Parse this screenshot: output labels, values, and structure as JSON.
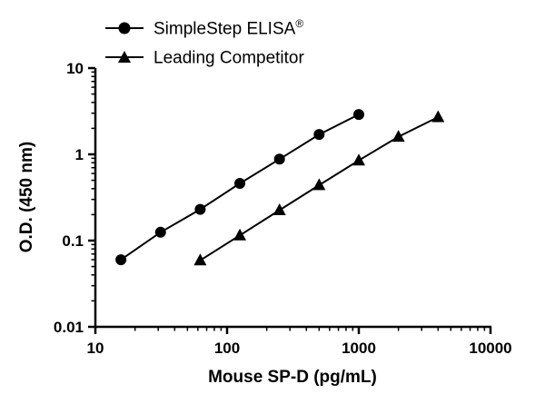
{
  "chart_data": {
    "type": "line",
    "title": "",
    "xlabel": "Mouse SP-D (pg/mL)",
    "ylabel": "O.D. (450 nm)",
    "x_scale": "log",
    "y_scale": "log",
    "xlim": [
      10,
      10000
    ],
    "ylim": [
      0.01,
      10
    ],
    "x_ticks": [
      10,
      100,
      1000,
      10000
    ],
    "x_tick_labels": [
      "10",
      "100",
      "1000",
      "10000"
    ],
    "y_ticks": [
      0.01,
      0.1,
      1,
      10
    ],
    "y_tick_labels": [
      "0.01",
      "0.1",
      "1",
      "10"
    ],
    "grid": false,
    "legend_position": "top-left",
    "line_color": "#000000",
    "background_color": "#ffffff",
    "series": [
      {
        "name": "SimpleStep ELISA",
        "name_suffix": "®",
        "marker": "circle",
        "x": [
          15.63,
          31.25,
          62.5,
          125,
          250,
          500,
          1000
        ],
        "y": [
          0.06,
          0.125,
          0.23,
          0.46,
          0.88,
          1.7,
          2.9
        ]
      },
      {
        "name": "Leading Competitor",
        "name_suffix": "",
        "marker": "triangle",
        "x": [
          62.5,
          125,
          250,
          500,
          1000,
          2000,
          4000
        ],
        "y": [
          0.059,
          0.115,
          0.225,
          0.44,
          0.85,
          1.6,
          2.7
        ]
      }
    ]
  }
}
